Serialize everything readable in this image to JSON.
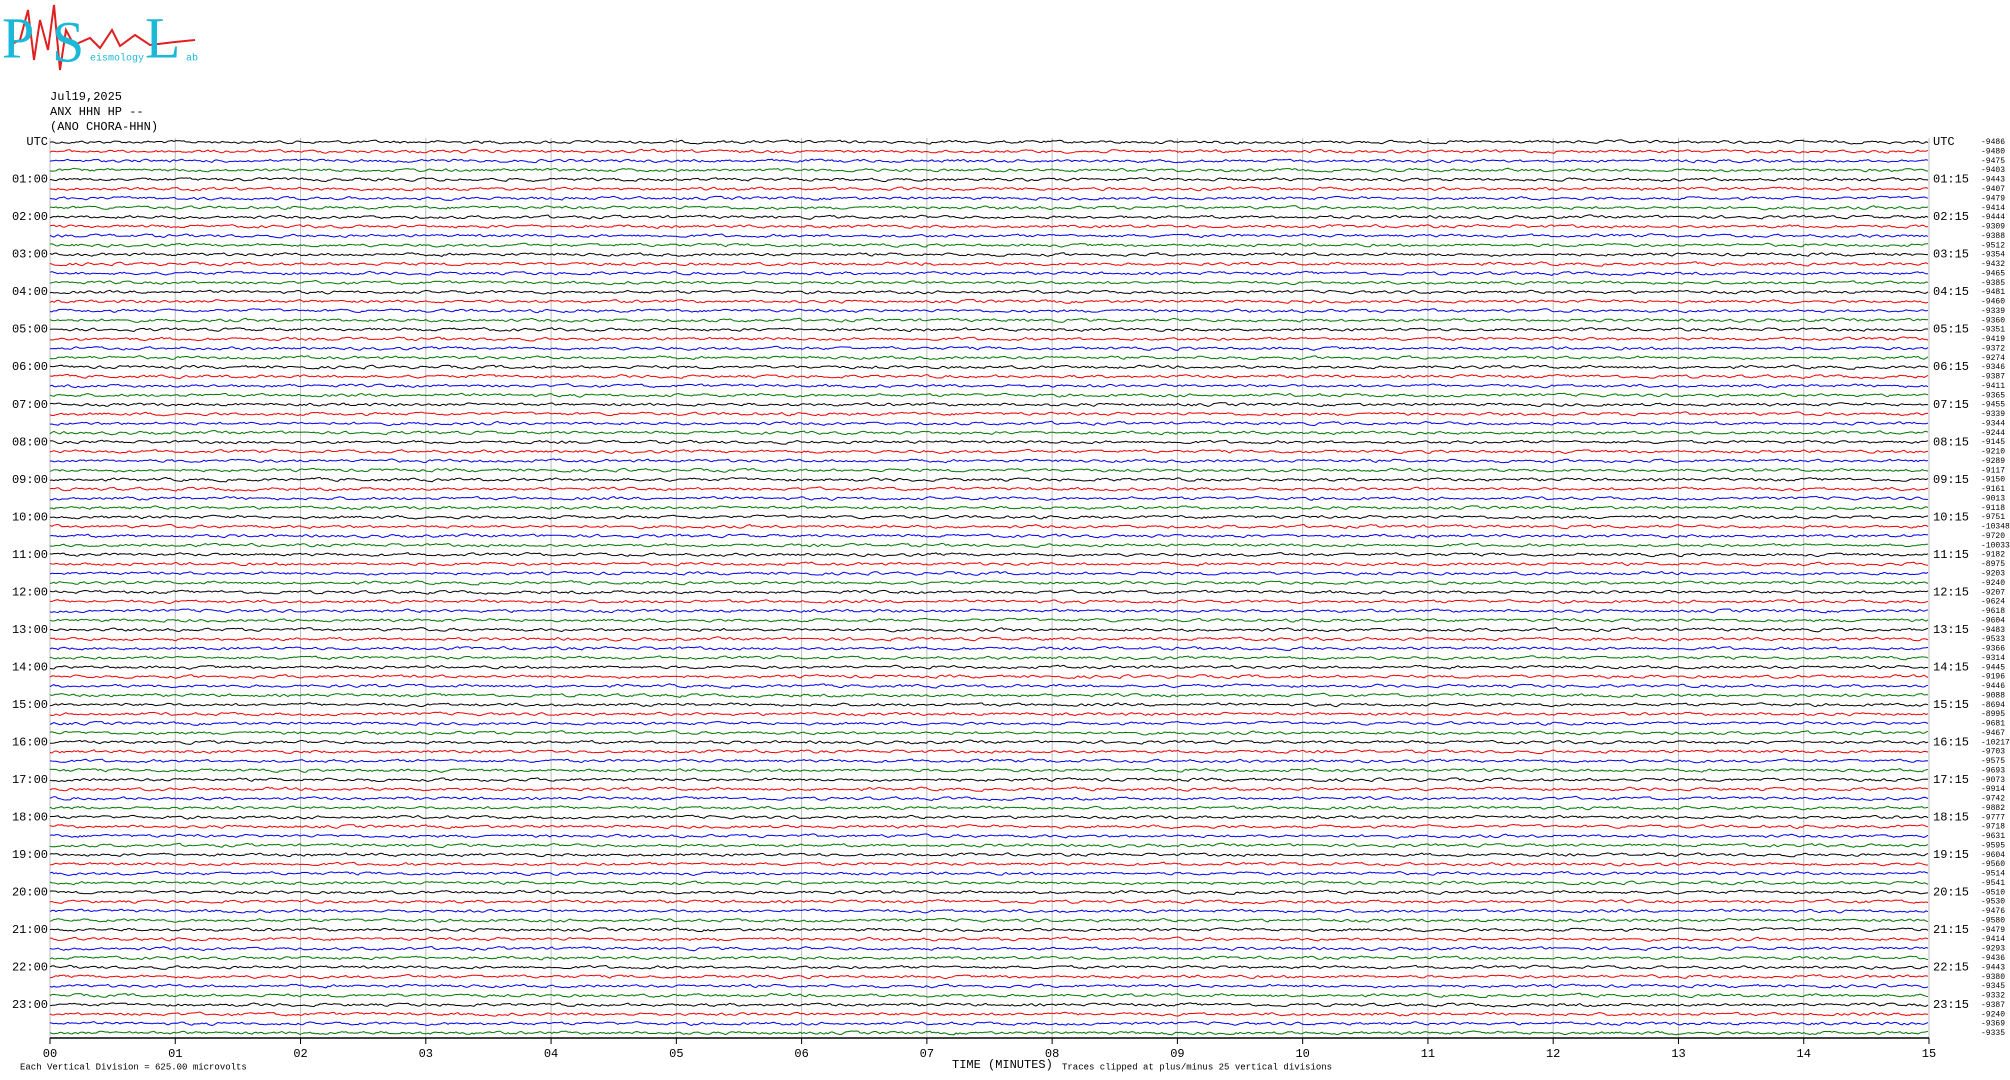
{
  "header": {
    "logo": {
      "p": "P",
      "s": "S",
      "l": "L",
      "seismology": "eismology",
      "lab": "ab"
    },
    "date": "Jul19,2025",
    "station": "ANX HHN HP --",
    "location": "(ANO CHORA-HHN)"
  },
  "left_labels": [
    "UTC",
    "01:00",
    "02:00",
    "03:00",
    "04:00",
    "05:00",
    "06:00",
    "07:00",
    "08:00",
    "09:00",
    "10:00",
    "11:00",
    "12:00",
    "13:00",
    "14:00",
    "15:00",
    "16:00",
    "17:00",
    "18:00",
    "19:00",
    "20:00",
    "21:00",
    "22:00",
    "23:00"
  ],
  "right_labels": [
    "UTC",
    "01:15",
    "02:15",
    "03:15",
    "04:15",
    "05:15",
    "06:15",
    "07:15",
    "08:15",
    "09:15",
    "10:15",
    "11:15",
    "12:15",
    "13:15",
    "14:15",
    "15:15",
    "16:15",
    "17:15",
    "18:15",
    "19:15",
    "20:15",
    "21:15",
    "22:15",
    "23:15"
  ],
  "offsets": [
    -9486,
    -9480,
    -9475,
    -9403,
    -9443,
    -9407,
    -9479,
    -9414,
    -9444,
    -9309,
    -9388,
    -9512,
    -9354,
    -9432,
    -9465,
    -9385,
    -9481,
    -9460,
    -9339,
    -9360,
    -9351,
    -9419,
    -9372,
    -9274,
    -9346,
    -9387,
    -9411,
    -9365,
    -9455,
    -9339,
    -9344,
    -9244,
    -9145,
    -9210,
    -9289,
    -9117,
    -9150,
    -9161,
    -9013,
    -9118,
    -9751,
    -10348,
    -9720,
    -10033,
    -9182,
    -8975,
    -9203,
    -9240,
    -9207,
    -9624,
    -9618,
    -9604,
    -9483,
    -9533,
    -9366,
    -9314,
    -9445,
    -9196,
    -9446,
    -9088,
    -8694,
    -8995,
    -9681,
    -9467,
    -10217,
    -9703,
    -9575,
    -9693,
    -9073,
    -9914,
    -9742,
    -9882,
    -9777,
    -9718,
    -9631,
    -9595,
    -9604,
    -9560,
    -9514,
    -9541,
    -9510,
    -9530,
    -9476,
    -9580,
    -9479,
    -9414,
    -9293,
    -9436,
    -9443,
    -9380,
    -9345,
    -9332,
    -9387,
    -9240,
    -9369,
    -9335
  ],
  "x_ticks": [
    "00",
    "01",
    "02",
    "03",
    "04",
    "05",
    "06",
    "07",
    "08",
    "09",
    "10",
    "11",
    "12",
    "13",
    "14",
    "15"
  ],
  "x_label": "TIME (MINUTES)",
  "scale_note": "Each Vertical Division =  625.00 microvolts",
  "clip_note": "Traces clipped at plus/minus 25 vertical divisions"
}
